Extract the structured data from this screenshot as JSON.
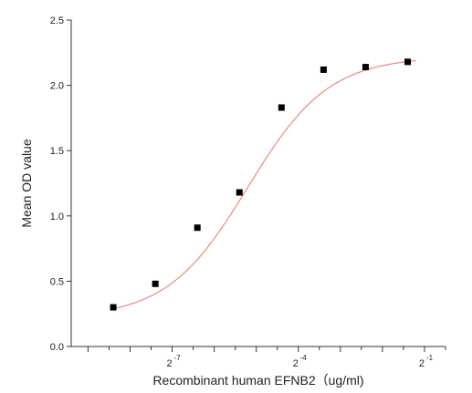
{
  "chart_data": {
    "type": "scatter",
    "title": "",
    "xlabel": "Recombinant human  EFNB2（ug/ml)",
    "ylabel": "Mean OD value",
    "x_scale": "log2",
    "x_tick_labels": [
      {
        "base": "2",
        "exp": "-7",
        "value": 0.0078125
      },
      {
        "base": "2",
        "exp": "-4",
        "value": 0.0625
      },
      {
        "base": "2",
        "exp": "-1",
        "value": 0.5
      }
    ],
    "y_ticks": [
      0.0,
      0.5,
      1.0,
      1.5,
      2.0,
      2.5
    ],
    "y_tick_labels": [
      "0.0",
      "0.5",
      "1.0",
      "1.5",
      "2.0",
      "2.5"
    ],
    "ylim": [
      0,
      2.5
    ],
    "x_exponent_range": [
      -9.4,
      -0.5
    ],
    "grid": false,
    "series": [
      {
        "marker": "square",
        "color": "#000000",
        "points": [
          {
            "x_exp": -8.4,
            "y": 0.3
          },
          {
            "x_exp": -7.4,
            "y": 0.48
          },
          {
            "x_exp": -6.4,
            "y": 0.91
          },
          {
            "x_exp": -5.4,
            "y": 1.18
          },
          {
            "x_exp": -4.4,
            "y": 1.83
          },
          {
            "x_exp": -3.4,
            "y": 2.12
          },
          {
            "x_exp": -2.4,
            "y": 2.14
          },
          {
            "x_exp": -1.4,
            "y": 2.18
          }
        ]
      },
      {
        "type": "line",
        "color": "#e88a8a",
        "fit": {
          "bottom": 0.22,
          "top": 2.22,
          "x50_exp": -5.2,
          "slope": 1.5
        }
      }
    ]
  }
}
